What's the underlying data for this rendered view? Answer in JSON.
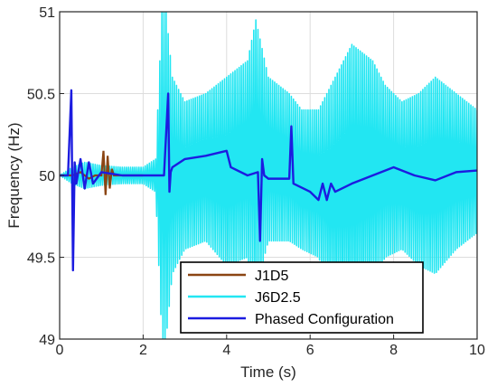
{
  "chart_data": {
    "type": "line",
    "xlabel": "Time (s)",
    "ylabel": "Frequency (Hz)",
    "xlim": [
      0,
      10
    ],
    "ylim": [
      49,
      51
    ],
    "xticks": [
      0,
      2,
      4,
      6,
      8,
      10
    ],
    "yticks": [
      49,
      49.5,
      50,
      50.5,
      51
    ],
    "xtick_labels": [
      "0",
      "2",
      "4",
      "6",
      "8",
      "10"
    ],
    "ytick_labels": [
      "49",
      "49.5",
      "50",
      "50.5",
      "51"
    ],
    "grid": true,
    "legend_position": "bottom-center",
    "series": [
      {
        "name": "J1D5",
        "color": "#8B4513",
        "x": [
          0.0,
          0.3,
          0.5,
          0.7,
          0.85,
          1.0,
          1.05,
          1.1,
          1.15,
          1.2,
          1.25,
          1.3,
          1.6,
          2.0
        ],
        "y": [
          50.0,
          50.0,
          50.02,
          49.98,
          50.0,
          50.0,
          50.15,
          49.88,
          50.12,
          49.92,
          50.04,
          50.0,
          50.0,
          50.0
        ]
      },
      {
        "name": "J6D2.5",
        "color": "#22E6F2",
        "x": [
          0,
          0.3,
          0.6,
          1.0,
          1.5,
          2.0,
          2.3,
          2.45,
          2.55,
          2.7,
          3.0,
          3.5,
          4.0,
          4.5,
          4.7,
          5.0,
          5.5,
          5.8,
          6.2,
          6.5,
          7.0,
          7.5,
          7.8,
          8.2,
          8.6,
          9.0,
          9.5,
          10.0
        ],
        "upper": [
          50.0,
          50.05,
          50.08,
          50.06,
          50.05,
          50.05,
          50.1,
          51.0,
          51.0,
          50.6,
          50.45,
          50.5,
          50.6,
          50.7,
          50.95,
          50.6,
          50.5,
          50.4,
          50.4,
          50.55,
          50.8,
          50.7,
          50.55,
          50.45,
          50.5,
          50.6,
          50.5,
          50.4
        ],
        "lower": [
          50.0,
          49.95,
          49.92,
          49.94,
          49.95,
          49.95,
          49.9,
          49.0,
          49.0,
          49.4,
          49.55,
          49.6,
          49.45,
          49.5,
          49.3,
          49.6,
          49.6,
          49.55,
          49.5,
          49.3,
          49.2,
          49.35,
          49.5,
          49.55,
          49.45,
          49.4,
          49.55,
          49.65
        ]
      },
      {
        "name": "Phased Configuration",
        "color": "#1C1CE0",
        "x": [
          0,
          0.2,
          0.28,
          0.32,
          0.36,
          0.4,
          0.5,
          0.6,
          0.7,
          0.8,
          1.0,
          1.5,
          2.0,
          2.5,
          2.6,
          2.63,
          2.66,
          2.7,
          3.0,
          3.5,
          4.0,
          4.1,
          4.5,
          4.75,
          4.8,
          4.85,
          4.9,
          5.0,
          5.5,
          5.55,
          5.6,
          6.0,
          6.2,
          6.3,
          6.4,
          6.5,
          6.6,
          7.0,
          7.5,
          8.0,
          8.5,
          9.0,
          9.5,
          10.0
        ],
        "y": [
          50.0,
          50.0,
          50.52,
          49.42,
          50.08,
          49.95,
          50.1,
          49.92,
          50.08,
          49.95,
          50.02,
          50.0,
          50.0,
          50.0,
          50.5,
          49.9,
          50.02,
          50.05,
          50.1,
          50.12,
          50.15,
          50.05,
          50.0,
          50.02,
          49.6,
          50.1,
          50.0,
          49.98,
          49.98,
          50.3,
          49.95,
          49.9,
          49.85,
          49.95,
          49.85,
          49.95,
          49.9,
          49.95,
          50.0,
          50.05,
          50.0,
          49.97,
          50.02,
          50.03
        ]
      }
    ]
  }
}
